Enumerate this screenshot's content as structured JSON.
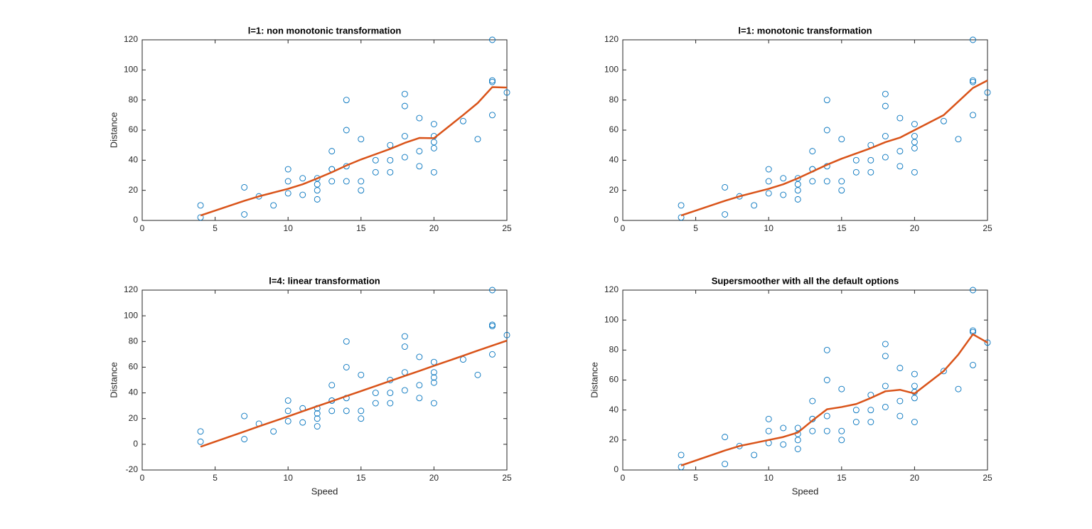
{
  "chart_data": [
    {
      "type": "scatter",
      "title": "l=1: non monotonic transformation",
      "ylabel": "Distance",
      "xlim": [
        0,
        25
      ],
      "xticks": [
        0,
        5,
        10,
        15,
        20,
        25
      ],
      "ylim": [
        0,
        120
      ],
      "yticks": [
        0,
        20,
        40,
        60,
        80,
        100,
        120
      ],
      "series": [
        {
          "style": "markers",
          "color": "#0072bd",
          "x": [
            4,
            4,
            7,
            7,
            8,
            9,
            10,
            10,
            10,
            11,
            11,
            12,
            12,
            12,
            12,
            13,
            13,
            13,
            13,
            14,
            14,
            14,
            14,
            15,
            15,
            15,
            16,
            16,
            17,
            17,
            17,
            18,
            18,
            18,
            18,
            19,
            19,
            19,
            20,
            20,
            20,
            20,
            20,
            22,
            23,
            24,
            24,
            24,
            24,
            25
          ],
          "values": [
            2,
            10,
            4,
            22,
            16,
            10,
            18,
            26,
            34,
            17,
            28,
            14,
            20,
            24,
            28,
            26,
            34,
            34,
            46,
            26,
            36,
            60,
            80,
            20,
            26,
            54,
            32,
            40,
            32,
            40,
            50,
            42,
            56,
            76,
            84,
            36,
            46,
            68,
            32,
            48,
            52,
            56,
            64,
            66,
            54,
            70,
            92,
            93,
            120,
            85
          ]
        },
        {
          "style": "line",
          "color": "#d95319",
          "x": [
            4,
            7,
            8,
            9,
            10,
            11,
            12,
            13,
            14,
            15,
            16,
            17,
            18,
            19,
            20,
            22,
            23,
            24,
            25
          ],
          "values": [
            3.3,
            13,
            16,
            18.5,
            21,
            24,
            27.9,
            32,
            36.5,
            40.5,
            44,
            47.5,
            51.5,
            54.8,
            54.6,
            70,
            78,
            88.6,
            88.3
          ]
        }
      ]
    },
    {
      "type": "scatter",
      "title": "l=1: monotonic transformation",
      "xlim": [
        0,
        25
      ],
      "xticks": [
        0,
        5,
        10,
        15,
        20,
        25
      ],
      "ylim": [
        0,
        120
      ],
      "yticks": [
        0,
        20,
        40,
        60,
        80,
        100,
        120
      ],
      "series": [
        {
          "style": "markers",
          "color": "#0072bd",
          "x": [
            4,
            4,
            7,
            7,
            8,
            9,
            10,
            10,
            10,
            11,
            11,
            12,
            12,
            12,
            12,
            13,
            13,
            13,
            13,
            14,
            14,
            14,
            14,
            15,
            15,
            15,
            16,
            16,
            17,
            17,
            17,
            18,
            18,
            18,
            18,
            19,
            19,
            19,
            20,
            20,
            20,
            20,
            20,
            22,
            23,
            24,
            24,
            24,
            24,
            25
          ],
          "values": [
            2,
            10,
            4,
            22,
            16,
            10,
            18,
            26,
            34,
            17,
            28,
            14,
            20,
            24,
            28,
            26,
            34,
            34,
            46,
            26,
            36,
            60,
            80,
            20,
            26,
            54,
            32,
            40,
            32,
            40,
            50,
            42,
            56,
            76,
            84,
            36,
            46,
            68,
            32,
            48,
            52,
            56,
            64,
            66,
            54,
            70,
            92,
            93,
            120,
            85
          ]
        },
        {
          "style": "line",
          "color": "#d95319",
          "x": [
            4,
            7,
            8,
            9,
            10,
            11,
            12,
            13,
            14,
            15,
            16,
            17,
            18,
            19,
            20,
            22,
            23,
            24,
            25
          ],
          "values": [
            3.3,
            13,
            16,
            18.5,
            21,
            24,
            28,
            32.5,
            37,
            41,
            44.5,
            48,
            52,
            55,
            60,
            70,
            79,
            88,
            93
          ]
        }
      ]
    },
    {
      "type": "scatter",
      "title": "l=4: linear transformation",
      "xlabel": "Speed",
      "ylabel": "Distance",
      "xlim": [
        0,
        25
      ],
      "xticks": [
        0,
        5,
        10,
        15,
        20,
        25
      ],
      "ylim": [
        -20,
        120
      ],
      "yticks": [
        -20,
        0,
        20,
        40,
        60,
        80,
        100,
        120
      ],
      "series": [
        {
          "style": "markers",
          "color": "#0072bd",
          "x": [
            4,
            4,
            7,
            7,
            8,
            9,
            10,
            10,
            10,
            11,
            11,
            12,
            12,
            12,
            12,
            13,
            13,
            13,
            13,
            14,
            14,
            14,
            14,
            15,
            15,
            15,
            16,
            16,
            17,
            17,
            17,
            18,
            18,
            18,
            18,
            19,
            19,
            19,
            20,
            20,
            20,
            20,
            20,
            22,
            23,
            24,
            24,
            24,
            24,
            25
          ],
          "values": [
            2,
            10,
            4,
            22,
            16,
            10,
            18,
            26,
            34,
            17,
            28,
            14,
            20,
            24,
            28,
            26,
            34,
            34,
            46,
            26,
            36,
            60,
            80,
            20,
            26,
            54,
            32,
            40,
            32,
            40,
            50,
            42,
            56,
            76,
            84,
            36,
            46,
            68,
            32,
            48,
            52,
            56,
            64,
            66,
            54,
            70,
            92,
            93,
            120,
            85
          ]
        },
        {
          "style": "line",
          "color": "#d95319",
          "x": [
            4,
            7,
            8,
            9,
            10,
            11,
            12,
            13,
            14,
            15,
            16,
            17,
            18,
            19,
            20,
            22,
            23,
            24,
            25
          ],
          "values": [
            -1.9,
            9.9,
            13.9,
            17.8,
            21.7,
            25.7,
            29.6,
            33.5,
            37.5,
            41.4,
            45.3,
            49.3,
            53.2,
            57.1,
            61.1,
            68.9,
            72.9,
            76.8,
            80.7
          ]
        }
      ]
    },
    {
      "type": "scatter",
      "title": "Supersmoother with all the default options",
      "xlabel": "Speed",
      "ylabel": "Distance",
      "xlim": [
        0,
        25
      ],
      "xticks": [
        0,
        5,
        10,
        15,
        20,
        25
      ],
      "ylim": [
        0,
        120
      ],
      "yticks": [
        0,
        20,
        40,
        60,
        80,
        100,
        120
      ],
      "series": [
        {
          "style": "markers",
          "color": "#0072bd",
          "x": [
            4,
            4,
            7,
            7,
            8,
            9,
            10,
            10,
            10,
            11,
            11,
            12,
            12,
            12,
            12,
            13,
            13,
            13,
            13,
            14,
            14,
            14,
            14,
            15,
            15,
            15,
            16,
            16,
            17,
            17,
            17,
            18,
            18,
            18,
            18,
            19,
            19,
            19,
            20,
            20,
            20,
            20,
            20,
            22,
            23,
            24,
            24,
            24,
            24,
            25
          ],
          "values": [
            2,
            10,
            4,
            22,
            16,
            10,
            18,
            26,
            34,
            17,
            28,
            14,
            20,
            24,
            28,
            26,
            34,
            34,
            46,
            26,
            36,
            60,
            80,
            20,
            26,
            54,
            32,
            40,
            32,
            40,
            50,
            42,
            56,
            76,
            84,
            36,
            46,
            68,
            32,
            48,
            52,
            56,
            64,
            66,
            54,
            70,
            92,
            93,
            120,
            85
          ]
        },
        {
          "style": "line",
          "color": "#d95319",
          "x": [
            4,
            7,
            8,
            9,
            10,
            11,
            12,
            13,
            14,
            15,
            16,
            17,
            18,
            19,
            20,
            22,
            23,
            24,
            25
          ],
          "values": [
            3,
            13,
            16,
            18,
            20,
            22,
            25,
            33,
            40.5,
            42,
            44,
            48,
            52.5,
            53.5,
            51,
            66,
            77,
            90.5,
            85
          ]
        }
      ]
    }
  ]
}
